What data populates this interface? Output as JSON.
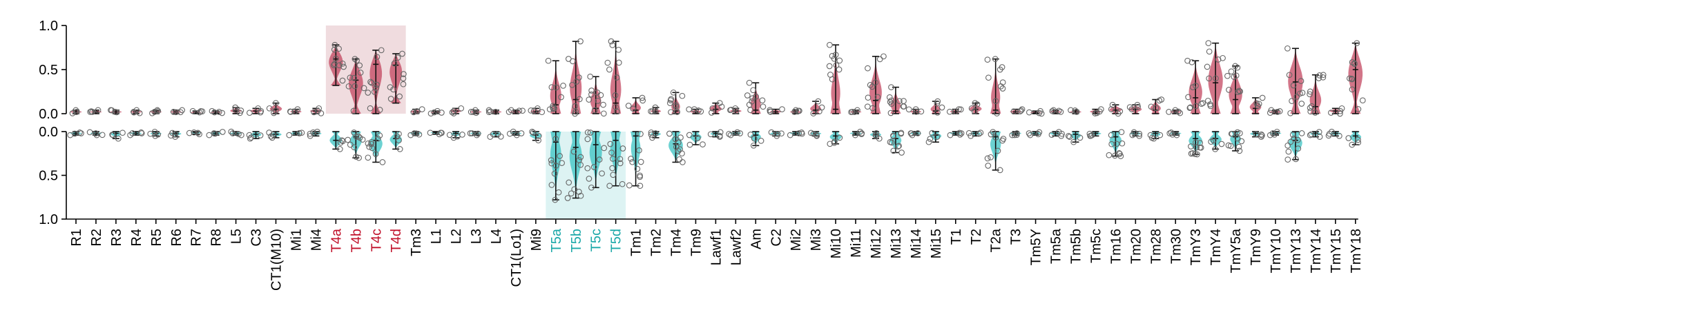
{
  "chart_data": {
    "type": "violin",
    "title": "",
    "xlabel": "",
    "ylabel": "",
    "top_panel": {
      "ylim": [
        0,
        1
      ],
      "yticks": [
        "0.0",
        "0.5",
        "1.0"
      ],
      "color": "#c0405a"
    },
    "bottom_panel": {
      "ylim": [
        0,
        1
      ],
      "inverted": true,
      "yticks": [
        "0.0",
        "0.5",
        "1.0"
      ],
      "color": "#33c0c0"
    },
    "highlight_colors": {
      "red_label": "#c0102a",
      "cyan_label": "#1aa8a8",
      "red_box": "#f0dcdf",
      "cyan_box": "#ddf3f3"
    },
    "highlights": [
      {
        "panel": "top",
        "from": "T4a",
        "to": "T4d"
      },
      {
        "panel": "bottom",
        "from": "T5a",
        "to": "T5d"
      }
    ],
    "categories": [
      {
        "name": "R1",
        "label_color": "default",
        "top": [
          0.0,
          0.02,
          0.04
        ],
        "bottom": [
          0.0,
          0.02,
          0.04
        ]
      },
      {
        "name": "R2",
        "label_color": "default",
        "top": [
          0.0,
          0.02,
          0.04
        ],
        "bottom": [
          0.0,
          0.02,
          0.04
        ]
      },
      {
        "name": "R3",
        "label_color": "default",
        "top": [
          0.0,
          0.02,
          0.04
        ],
        "bottom": [
          0.0,
          0.02,
          0.08
        ]
      },
      {
        "name": "R4",
        "label_color": "default",
        "top": [
          0.0,
          0.02,
          0.04
        ],
        "bottom": [
          0.0,
          0.02,
          0.04
        ]
      },
      {
        "name": "R5",
        "label_color": "default",
        "top": [
          0.0,
          0.02,
          0.04
        ],
        "bottom": [
          0.0,
          0.02,
          0.05
        ]
      },
      {
        "name": "R6",
        "label_color": "default",
        "top": [
          0.0,
          0.02,
          0.04
        ],
        "bottom": [
          0.0,
          0.02,
          0.06
        ]
      },
      {
        "name": "R7",
        "label_color": "default",
        "top": [
          0.0,
          0.01,
          0.03
        ],
        "bottom": [
          0.0,
          0.01,
          0.03
        ]
      },
      {
        "name": "R8",
        "label_color": "default",
        "top": [
          0.0,
          0.01,
          0.03
        ],
        "bottom": [
          0.0,
          0.02,
          0.04
        ]
      },
      {
        "name": "L5",
        "label_color": "default",
        "top": [
          0.0,
          0.03,
          0.07
        ],
        "bottom": [
          0.0,
          0.02,
          0.04
        ]
      },
      {
        "name": "C3",
        "label_color": "default",
        "top": [
          0.0,
          0.03,
          0.06
        ],
        "bottom": [
          0.0,
          0.03,
          0.08
        ]
      },
      {
        "name": "CT1(M10)",
        "label_color": "default",
        "top": [
          0.0,
          0.05,
          0.12
        ],
        "bottom": [
          0.0,
          0.03,
          0.07
        ]
      },
      {
        "name": "Mi1",
        "label_color": "default",
        "top": [
          0.0,
          0.02,
          0.05
        ],
        "bottom": [
          0.0,
          0.02,
          0.04
        ]
      },
      {
        "name": "Mi4",
        "label_color": "default",
        "top": [
          0.0,
          0.03,
          0.06
        ],
        "bottom": [
          0.0,
          0.02,
          0.05
        ]
      },
      {
        "name": "T4a",
        "label_color": "red",
        "top": [
          0.32,
          0.62,
          0.78
        ],
        "bottom": [
          0.0,
          0.1,
          0.2
        ]
      },
      {
        "name": "T4b",
        "label_color": "red",
        "top": [
          0.0,
          0.38,
          0.62
        ],
        "bottom": [
          0.0,
          0.06,
          0.3
        ]
      },
      {
        "name": "T4c",
        "label_color": "red",
        "top": [
          0.0,
          0.56,
          0.72
        ],
        "bottom": [
          0.0,
          0.1,
          0.35
        ]
      },
      {
        "name": "T4d",
        "label_color": "red",
        "top": [
          0.12,
          0.55,
          0.68
        ],
        "bottom": [
          0.0,
          0.08,
          0.2
        ]
      },
      {
        "name": "Tm3",
        "label_color": "default",
        "top": [
          0.0,
          0.02,
          0.05
        ],
        "bottom": [
          0.0,
          0.02,
          0.04
        ]
      },
      {
        "name": "L1",
        "label_color": "default",
        "top": [
          0.0,
          0.01,
          0.03
        ],
        "bottom": [
          0.0,
          0.01,
          0.03
        ]
      },
      {
        "name": "L2",
        "label_color": "default",
        "top": [
          0.0,
          0.03,
          0.06
        ],
        "bottom": [
          0.0,
          0.02,
          0.07
        ]
      },
      {
        "name": "L3",
        "label_color": "default",
        "top": [
          0.0,
          0.02,
          0.04
        ],
        "bottom": [
          0.0,
          0.02,
          0.04
        ]
      },
      {
        "name": "L4",
        "label_color": "default",
        "top": [
          0.0,
          0.02,
          0.04
        ],
        "bottom": [
          0.0,
          0.02,
          0.06
        ]
      },
      {
        "name": "CT1(Lo1)",
        "label_color": "default",
        "top": [
          0.0,
          0.02,
          0.04
        ],
        "bottom": [
          0.0,
          0.02,
          0.04
        ]
      },
      {
        "name": "Mi9",
        "label_color": "default",
        "top": [
          0.0,
          0.02,
          0.06
        ],
        "bottom": [
          0.0,
          0.04,
          0.1
        ]
      },
      {
        "name": "T5a",
        "label_color": "cyan",
        "top": [
          0.0,
          0.1,
          0.6
        ],
        "bottom": [
          0.0,
          0.12,
          0.78
        ]
      },
      {
        "name": "T5b",
        "label_color": "cyan",
        "top": [
          0.0,
          0.16,
          0.82
        ],
        "bottom": [
          0.0,
          0.18,
          0.76
        ]
      },
      {
        "name": "T5c",
        "label_color": "cyan",
        "top": [
          0.0,
          0.06,
          0.42
        ],
        "bottom": [
          0.0,
          0.15,
          0.64
        ]
      },
      {
        "name": "T5d",
        "label_color": "cyan",
        "top": [
          0.0,
          0.12,
          0.82
        ],
        "bottom": [
          0.0,
          0.1,
          0.62
        ]
      },
      {
        "name": "Tm1",
        "label_color": "default",
        "top": [
          0.0,
          0.04,
          0.18
        ],
        "bottom": [
          0.0,
          0.05,
          0.62
        ]
      },
      {
        "name": "Tm2",
        "label_color": "default",
        "top": [
          0.0,
          0.02,
          0.07
        ],
        "bottom": [
          0.0,
          0.02,
          0.07
        ]
      },
      {
        "name": "Tm4",
        "label_color": "default",
        "top": [
          0.0,
          0.03,
          0.24
        ],
        "bottom": [
          0.0,
          0.14,
          0.35
        ]
      },
      {
        "name": "Tm9",
        "label_color": "default",
        "top": [
          0.0,
          0.02,
          0.05
        ],
        "bottom": [
          0.0,
          0.05,
          0.15
        ]
      },
      {
        "name": "Lawf1",
        "label_color": "default",
        "top": [
          0.0,
          0.05,
          0.12
        ],
        "bottom": [
          0.0,
          0.02,
          0.06
        ]
      },
      {
        "name": "Lawf2",
        "label_color": "default",
        "top": [
          0.0,
          0.03,
          0.06
        ],
        "bottom": [
          0.0,
          0.02,
          0.04
        ]
      },
      {
        "name": "Am",
        "label_color": "default",
        "top": [
          0.0,
          0.04,
          0.35
        ],
        "bottom": [
          0.0,
          0.04,
          0.16
        ]
      },
      {
        "name": "C2",
        "label_color": "default",
        "top": [
          0.0,
          0.02,
          0.05
        ],
        "bottom": [
          0.0,
          0.02,
          0.05
        ]
      },
      {
        "name": "Mi2",
        "label_color": "default",
        "top": [
          0.0,
          0.02,
          0.04
        ],
        "bottom": [
          0.0,
          0.02,
          0.04
        ]
      },
      {
        "name": "Mi3",
        "label_color": "default",
        "top": [
          0.0,
          0.04,
          0.14
        ],
        "bottom": [
          0.0,
          0.02,
          0.05
        ]
      },
      {
        "name": "Mi10",
        "label_color": "default",
        "top": [
          0.0,
          0.05,
          0.78
        ],
        "bottom": [
          0.0,
          0.05,
          0.14
        ]
      },
      {
        "name": "Mi11",
        "label_color": "default",
        "top": [
          0.0,
          0.02,
          0.04
        ],
        "bottom": [
          0.0,
          0.02,
          0.04
        ]
      },
      {
        "name": "Mi12",
        "label_color": "default",
        "top": [
          0.0,
          0.15,
          0.65
        ],
        "bottom": [
          0.0,
          0.03,
          0.08
        ]
      },
      {
        "name": "Mi13",
        "label_color": "default",
        "top": [
          0.0,
          0.03,
          0.3
        ],
        "bottom": [
          0.0,
          0.08,
          0.24
        ]
      },
      {
        "name": "Mi14",
        "label_color": "default",
        "top": [
          0.0,
          0.02,
          0.05
        ],
        "bottom": [
          0.0,
          0.02,
          0.04
        ]
      },
      {
        "name": "Mi15",
        "label_color": "default",
        "top": [
          0.0,
          0.03,
          0.14
        ],
        "bottom": [
          0.0,
          0.04,
          0.12
        ]
      },
      {
        "name": "T1",
        "label_color": "default",
        "top": [
          0.0,
          0.02,
          0.05
        ],
        "bottom": [
          0.0,
          0.02,
          0.04
        ]
      },
      {
        "name": "T2",
        "label_color": "default",
        "top": [
          0.0,
          0.05,
          0.12
        ],
        "bottom": [
          0.0,
          0.02,
          0.05
        ]
      },
      {
        "name": "T2a",
        "label_color": "default",
        "top": [
          0.0,
          0.04,
          0.62
        ],
        "bottom": [
          0.0,
          0.06,
          0.44
        ]
      },
      {
        "name": "T3",
        "label_color": "default",
        "top": [
          0.0,
          0.02,
          0.05
        ],
        "bottom": [
          0.0,
          0.02,
          0.04
        ]
      },
      {
        "name": "Tm5Y",
        "label_color": "default",
        "top": [
          0.0,
          0.01,
          0.03
        ],
        "bottom": [
          0.0,
          0.02,
          0.04
        ]
      },
      {
        "name": "Tm5a",
        "label_color": "default",
        "top": [
          0.0,
          0.02,
          0.04
        ],
        "bottom": [
          0.0,
          0.02,
          0.05
        ]
      },
      {
        "name": "Tm5b",
        "label_color": "default",
        "top": [
          0.0,
          0.02,
          0.04
        ],
        "bottom": [
          0.0,
          0.03,
          0.12
        ]
      },
      {
        "name": "Tm5c",
        "label_color": "default",
        "top": [
          0.0,
          0.02,
          0.05
        ],
        "bottom": [
          0.0,
          0.02,
          0.05
        ]
      },
      {
        "name": "Tm16",
        "label_color": "default",
        "top": [
          0.0,
          0.04,
          0.1
        ],
        "bottom": [
          0.0,
          0.06,
          0.28
        ]
      },
      {
        "name": "Tm20",
        "label_color": "default",
        "top": [
          0.0,
          0.05,
          0.1
        ],
        "bottom": [
          0.0,
          0.02,
          0.05
        ]
      },
      {
        "name": "Tm28",
        "label_color": "default",
        "top": [
          0.0,
          0.04,
          0.16
        ],
        "bottom": [
          0.0,
          0.02,
          0.08
        ]
      },
      {
        "name": "Tm30",
        "label_color": "default",
        "top": [
          0.0,
          0.02,
          0.04
        ],
        "bottom": [
          0.0,
          0.02,
          0.04
        ]
      },
      {
        "name": "TmY3",
        "label_color": "default",
        "top": [
          0.0,
          0.18,
          0.6
        ],
        "bottom": [
          0.0,
          0.08,
          0.26
        ]
      },
      {
        "name": "TmY4",
        "label_color": "default",
        "top": [
          0.0,
          0.35,
          0.8
        ],
        "bottom": [
          0.0,
          0.08,
          0.2
        ]
      },
      {
        "name": "TmY5a",
        "label_color": "default",
        "top": [
          0.0,
          0.16,
          0.54
        ],
        "bottom": [
          0.0,
          0.06,
          0.22
        ]
      },
      {
        "name": "TmY9",
        "label_color": "default",
        "top": [
          0.0,
          0.06,
          0.18
        ],
        "bottom": [
          0.0,
          0.02,
          0.06
        ]
      },
      {
        "name": "TmY10",
        "label_color": "default",
        "top": [
          0.0,
          0.02,
          0.04
        ],
        "bottom": [
          0.0,
          0.02,
          0.04
        ]
      },
      {
        "name": "TmY13",
        "label_color": "default",
        "top": [
          0.0,
          0.36,
          0.74
        ],
        "bottom": [
          0.0,
          0.1,
          0.32
        ]
      },
      {
        "name": "TmY14",
        "label_color": "default",
        "top": [
          0.0,
          0.08,
          0.44
        ],
        "bottom": [
          0.0,
          0.02,
          0.06
        ]
      },
      {
        "name": "TmY15",
        "label_color": "default",
        "top": [
          0.0,
          0.03,
          0.06
        ],
        "bottom": [
          0.0,
          0.02,
          0.05
        ]
      },
      {
        "name": "TmY18",
        "label_color": "default",
        "top": [
          0.0,
          0.5,
          0.8
        ],
        "bottom": [
          0.0,
          0.05,
          0.15
        ]
      }
    ]
  }
}
